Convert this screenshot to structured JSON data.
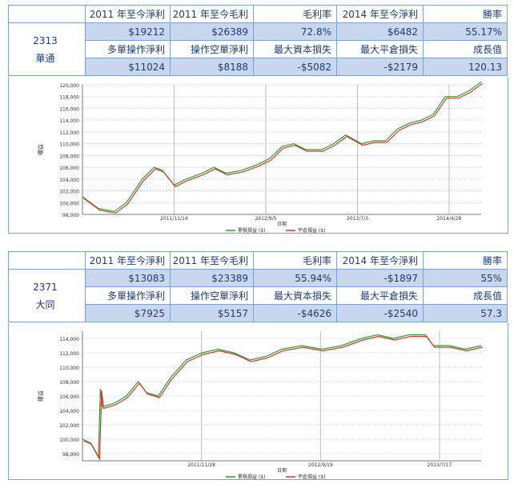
{
  "headers": [
    "2011 年至今淨利",
    "2011 年至今毛利",
    "毛利率",
    "2014 年至今淨利",
    "勝率"
  ],
  "headers2": [
    "多單操作淨利",
    "操作空單淨利",
    "最大資本損失",
    "最大平倉損失",
    "成長值"
  ],
  "stocks": [
    {
      "code": "2313",
      "name": "華通",
      "row1": [
        "$19212",
        "$26389",
        "72.8%",
        "$6482",
        "55.17%"
      ],
      "row2": [
        "$11024",
        "$8188",
        "-$5082",
        "-$2179",
        "120.13"
      ],
      "chart_data": {
        "type": "line",
        "xlabel": "日期",
        "ylabel": "權益",
        "x_ticks": [
          "2011/11/14",
          "2012/9/5",
          "2013/7/3",
          "2014/4/28"
        ],
        "y_ticks": [
          "98,000",
          "100,000",
          "102,000",
          "104,000",
          "106,000",
          "108,000",
          "110,000",
          "112,000",
          "114,000",
          "116,000",
          "118,000",
          "120,000"
        ],
        "ylim": [
          98000,
          120000
        ],
        "legend": [
          "累積損益 ($)",
          "平倉損益 ($)"
        ],
        "series_colors": [
          "#2e9e2e",
          "#d8342c"
        ],
        "x_fraction": [
          0,
          0.04,
          0.08,
          0.11,
          0.15,
          0.18,
          0.2,
          0.23,
          0.26,
          0.3,
          0.33,
          0.36,
          0.4,
          0.44,
          0.47,
          0.5,
          0.53,
          0.56,
          0.6,
          0.63,
          0.66,
          0.7,
          0.73,
          0.76,
          0.79,
          0.82,
          0.85,
          0.88,
          0.91,
          0.94,
          0.97,
          1.0
        ],
        "values": [
          101000,
          99000,
          98500,
          100000,
          104000,
          106000,
          105500,
          103000,
          104000,
          105000,
          106000,
          105000,
          105500,
          106500,
          107500,
          109500,
          110000,
          109000,
          109000,
          110000,
          111500,
          110000,
          110500,
          110500,
          112500,
          113500,
          114000,
          115000,
          118000,
          118000,
          119000,
          120500
        ]
      }
    },
    {
      "code": "2371",
      "name": "大同",
      "row1": [
        "$13083",
        "$23389",
        "55.94%",
        "-$1897",
        "55%"
      ],
      "row2": [
        "$7925",
        "$5157",
        "-$4626",
        "-$2540",
        "57.3"
      ],
      "chart_data": {
        "type": "line",
        "xlabel": "日期",
        "ylabel": "權益",
        "x_ticks": [
          "2011/11/28",
          "2012/9/19",
          "2013/7/17"
        ],
        "y_ticks": [
          "98,000",
          "100,000",
          "102,000",
          "104,000",
          "106,000",
          "108,000",
          "110,000",
          "112,000",
          "114,000"
        ],
        "ylim": [
          97000,
          115000
        ],
        "legend": [
          "累積損益 ($)",
          "平倉損益 ($)"
        ],
        "series_colors": [
          "#2e9e2e",
          "#d8342c"
        ],
        "x_fraction": [
          0,
          0.02,
          0.04,
          0.045,
          0.05,
          0.08,
          0.11,
          0.14,
          0.16,
          0.19,
          0.22,
          0.26,
          0.3,
          0.34,
          0.38,
          0.42,
          0.46,
          0.5,
          0.55,
          0.6,
          0.65,
          0.7,
          0.74,
          0.78,
          0.82,
          0.86,
          0.88,
          0.92,
          0.96,
          1.0
        ],
        "values": [
          100000,
          99500,
          97500,
          107000,
          104500,
          105000,
          106000,
          108000,
          106500,
          106000,
          108500,
          111000,
          112000,
          112500,
          112000,
          111000,
          111500,
          112500,
          113000,
          112500,
          113000,
          114000,
          114500,
          114000,
          114500,
          114500,
          113000,
          113000,
          112500,
          113000
        ]
      }
    }
  ]
}
